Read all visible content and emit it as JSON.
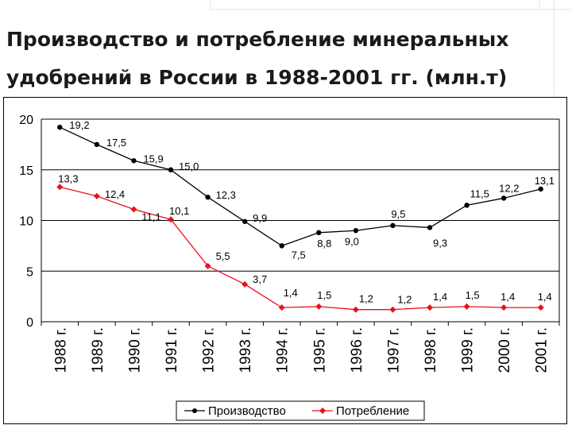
{
  "chart_data": {
    "type": "line",
    "title": "Производство и потребление минеральных удобрений в России в 1988-2001 гг. (млн.т)",
    "categories": [
      "1988 г.",
      "1989 г.",
      "1990 г.",
      "1991 г.",
      "1992 г.",
      "1993 г.",
      "1994 г.",
      "1995 г.",
      "1996 г.",
      "1997 г.",
      "1998 г.",
      "1999 г.",
      "2000 г.",
      "2001 г."
    ],
    "series": [
      {
        "name": "Производство",
        "color": "#000000",
        "marker": "circle",
        "values": [
          19.2,
          17.5,
          15.9,
          15.0,
          12.3,
          9.9,
          7.5,
          8.8,
          9.0,
          9.5,
          9.3,
          11.5,
          12.2,
          13.1
        ],
        "labels": [
          "19,2",
          "17,5",
          "15,9",
          "15,0",
          "12,3",
          "9,9",
          "7,5",
          "8,8",
          "9,0",
          "9,5",
          "9,3",
          "11,5",
          "12,2",
          "13,1"
        ]
      },
      {
        "name": "Потребление",
        "color": "#e8121c",
        "marker": "diamond",
        "values": [
          13.3,
          12.4,
          11.1,
          10.1,
          5.5,
          3.7,
          1.4,
          1.5,
          1.2,
          1.2,
          1.4,
          1.5,
          1.4,
          1.4
        ],
        "labels": [
          "13,3",
          "12,4",
          "11,1",
          "10,1",
          "5,5",
          "3,7",
          "1,4",
          "1,5",
          "1,2",
          "1,2",
          "1,4",
          "1,5",
          "1,4",
          "1,4"
        ]
      }
    ],
    "ylim": [
      0,
      20
    ],
    "yticks": [
      0,
      5,
      10,
      15,
      20
    ],
    "grid": "horizontal",
    "legend": "bottom"
  },
  "colors": {
    "production": "#000000",
    "consumption": "#e8121c",
    "grid": "#000000"
  }
}
